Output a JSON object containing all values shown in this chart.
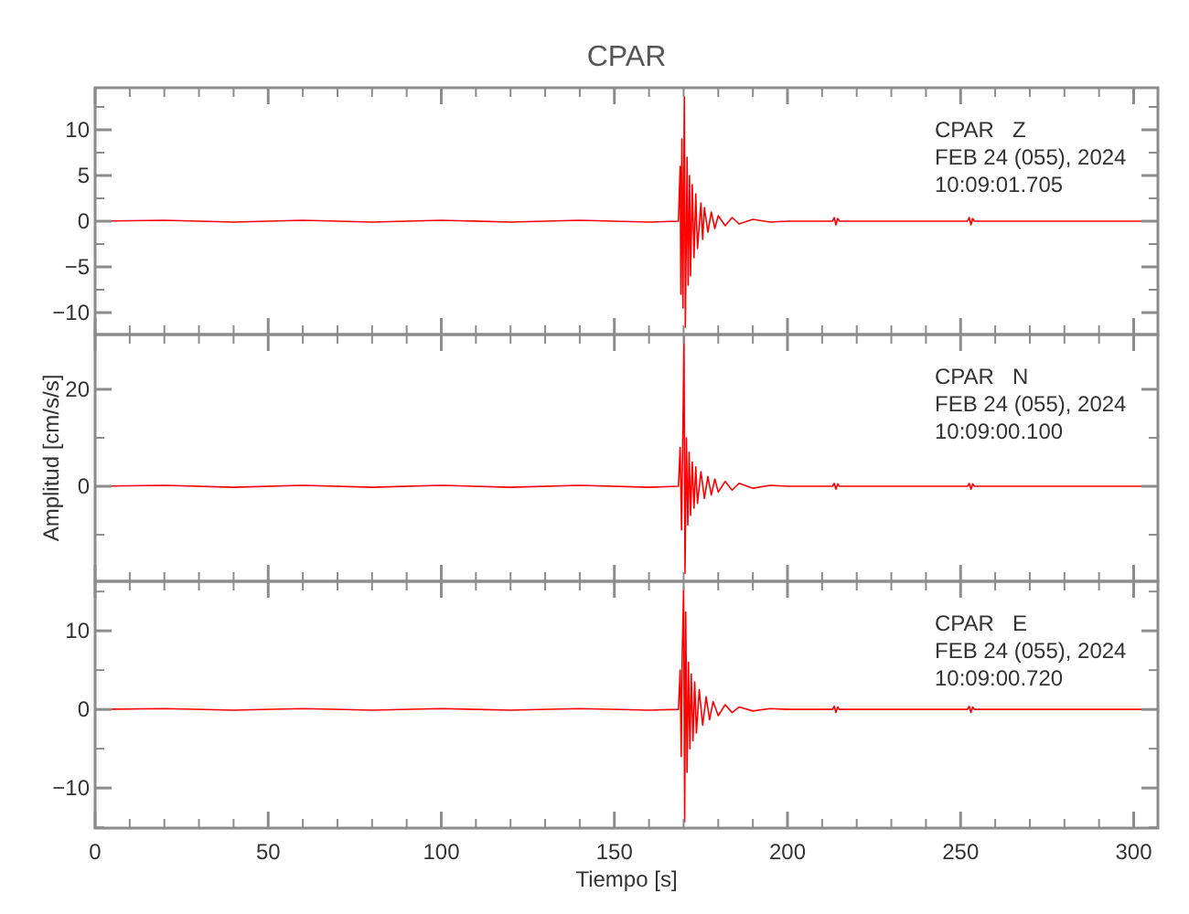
{
  "chart_data": [
    {
      "type": "line",
      "title": "CPAR",
      "xlim": [
        0,
        307
      ],
      "ylim": [
        -12.4,
        14.6
      ],
      "tick_labels": "y",
      "grid": false,
      "line_style": "solid",
      "marker": "none",
      "xticks": [
        0,
        {
          "value": 10,
          "label": null
        },
        {
          "value": 20,
          "label": null
        },
        {
          "value": 30,
          "label": null
        },
        {
          "value": 40,
          "label": null
        },
        50,
        {
          "value": 60,
          "label": null
        },
        {
          "value": 70,
          "label": null
        },
        {
          "value": 80,
          "label": null
        },
        {
          "value": 90,
          "label": null
        },
        100,
        {
          "value": 110,
          "label": null
        },
        {
          "value": 120,
          "label": null
        },
        {
          "value": 130,
          "label": null
        },
        {
          "value": 140,
          "label": null
        },
        150,
        {
          "value": 160,
          "label": null
        },
        {
          "value": 170,
          "label": null
        },
        {
          "value": 180,
          "label": null
        },
        {
          "value": 190,
          "label": null
        },
        200,
        {
          "value": 210,
          "label": null
        },
        {
          "value": 220,
          "label": null
        },
        {
          "value": 230,
          "label": null
        },
        {
          "value": 240,
          "label": null
        },
        250,
        {
          "value": 260,
          "label": null
        },
        {
          "value": 270,
          "label": null
        },
        {
          "value": 280,
          "label": null
        },
        {
          "value": 290,
          "label": null
        },
        300
      ],
      "yticks": [
        -10,
        {
          "value": -7.5,
          "label": null
        },
        -5,
        {
          "value": -2.5,
          "label": null
        },
        0,
        {
          "value": 2.5,
          "label": null
        },
        5,
        {
          "value": 7.5,
          "label": null
        },
        10,
        {
          "value": 12.5,
          "label": null
        }
      ],
      "annotations": [
        "CPAR   Z",
        "FEB 24 (055), 2024",
        "10:09:01.705"
      ],
      "series": [
        {
          "color": "#ff0000",
          "x": [
            0,
            20,
            40,
            60,
            80,
            100,
            120,
            140,
            160,
            168.5,
            169,
            169.2,
            169.5,
            169.8,
            170.2,
            170.5,
            171,
            171.3,
            171.7,
            172,
            172.5,
            173,
            173.5,
            174,
            175,
            175.5,
            176,
            177,
            178,
            179,
            180,
            182,
            184,
            186,
            190,
            195,
            200,
            213,
            213.5,
            214,
            214.5,
            215,
            252,
            252.5,
            253,
            253.5,
            254,
            280,
            307
          ],
          "values": [
            0,
            0.1,
            -0.1,
            0.1,
            -0.1,
            0.1,
            -0.1,
            0.1,
            -0.1,
            0,
            6,
            -8,
            9,
            -9.5,
            13.6,
            -11.6,
            7,
            -7,
            5,
            -6,
            4,
            -4,
            3,
            -3,
            2,
            -2,
            1.5,
            -1.2,
            1,
            -0.8,
            0.6,
            -0.5,
            0.4,
            -0.3,
            0.2,
            -0.1,
            0,
            0,
            0.4,
            -0.4,
            0.3,
            0,
            0,
            0.4,
            -0.4,
            0.3,
            0,
            0,
            0
          ]
        }
      ]
    },
    {
      "type": "line",
      "ylabel": "Amplitud [cm/s/s]",
      "xlim": [
        0,
        307
      ],
      "ylim": [
        -19.6,
        31.3
      ],
      "tick_labels": "y",
      "grid": false,
      "line_style": "solid",
      "marker": "none",
      "xticks": [
        0,
        {
          "value": 10,
          "label": null
        },
        {
          "value": 20,
          "label": null
        },
        {
          "value": 30,
          "label": null
        },
        {
          "value": 40,
          "label": null
        },
        50,
        {
          "value": 60,
          "label": null
        },
        {
          "value": 70,
          "label": null
        },
        {
          "value": 80,
          "label": null
        },
        {
          "value": 90,
          "label": null
        },
        100,
        {
          "value": 110,
          "label": null
        },
        {
          "value": 120,
          "label": null
        },
        {
          "value": 130,
          "label": null
        },
        {
          "value": 140,
          "label": null
        },
        150,
        {
          "value": 160,
          "label": null
        },
        {
          "value": 170,
          "label": null
        },
        {
          "value": 180,
          "label": null
        },
        {
          "value": 190,
          "label": null
        },
        200,
        {
          "value": 210,
          "label": null
        },
        {
          "value": 220,
          "label": null
        },
        {
          "value": 230,
          "label": null
        },
        {
          "value": 240,
          "label": null
        },
        250,
        {
          "value": 260,
          "label": null
        },
        {
          "value": 270,
          "label": null
        },
        {
          "value": 280,
          "label": null
        },
        {
          "value": 290,
          "label": null
        },
        300
      ],
      "yticks": [
        {
          "value": -10,
          "label": null
        },
        0,
        {
          "value": 10,
          "label": null
        },
        20
      ],
      "annotations": [
        "CPAR   N",
        "FEB 24 (055), 2024",
        "10:09:00.100"
      ],
      "series": [
        {
          "color": "#ff0000",
          "x": [
            0,
            20,
            40,
            60,
            80,
            100,
            120,
            140,
            160,
            168.5,
            169,
            169.4,
            169.8,
            170.1,
            170.4,
            170.8,
            171.2,
            171.6,
            172,
            172.5,
            173,
            173.5,
            174,
            175,
            176,
            177,
            178,
            179,
            180,
            182,
            184,
            186,
            190,
            195,
            200,
            213,
            213.5,
            214,
            214.5,
            215,
            252,
            252.5,
            253,
            253.5,
            254,
            280,
            307
          ],
          "values": [
            0,
            0.2,
            -0.2,
            0.2,
            -0.2,
            0.2,
            -0.2,
            0.2,
            -0.2,
            0,
            8,
            -9,
            12,
            31,
            -18,
            10,
            -8,
            7,
            -6,
            5,
            -4.5,
            4,
            -3.5,
            3,
            -2.5,
            2,
            -1.8,
            1.5,
            -1.2,
            1,
            -0.8,
            0.6,
            -0.4,
            0.2,
            0,
            0,
            0.6,
            -0.6,
            0.5,
            0,
            0,
            0.6,
            -0.6,
            0.5,
            0,
            0,
            0
          ]
        }
      ]
    },
    {
      "type": "line",
      "xlabel": "Tiempo [s]",
      "xlim": [
        0,
        307
      ],
      "ylim": [
        -15.1,
        16.3
      ],
      "grid": false,
      "line_style": "solid",
      "marker": "none",
      "xticks": [
        0,
        {
          "value": 10,
          "label": null
        },
        {
          "value": 20,
          "label": null
        },
        {
          "value": 30,
          "label": null
        },
        {
          "value": 40,
          "label": null
        },
        50,
        {
          "value": 60,
          "label": null
        },
        {
          "value": 70,
          "label": null
        },
        {
          "value": 80,
          "label": null
        },
        {
          "value": 90,
          "label": null
        },
        100,
        {
          "value": 110,
          "label": null
        },
        {
          "value": 120,
          "label": null
        },
        {
          "value": 130,
          "label": null
        },
        {
          "value": 140,
          "label": null
        },
        150,
        {
          "value": 160,
          "label": null
        },
        {
          "value": 170,
          "label": null
        },
        {
          "value": 180,
          "label": null
        },
        {
          "value": 190,
          "label": null
        },
        200,
        {
          "value": 210,
          "label": null
        },
        {
          "value": 220,
          "label": null
        },
        {
          "value": 230,
          "label": null
        },
        {
          "value": 240,
          "label": null
        },
        250,
        {
          "value": 260,
          "label": null
        },
        {
          "value": 270,
          "label": null
        },
        {
          "value": 280,
          "label": null
        },
        {
          "value": 290,
          "label": null
        },
        300
      ],
      "yticks": [
        {
          "value": -15,
          "label": null
        },
        -10,
        {
          "value": -5,
          "label": null
        },
        0,
        {
          "value": 5,
          "label": null
        },
        10,
        {
          "value": 15,
          "label": null
        }
      ],
      "annotations": [
        "CPAR   E",
        "FEB 24 (055), 2024",
        "10:09:00.720"
      ],
      "series": [
        {
          "color": "#ff0000",
          "x": [
            0,
            20,
            40,
            60,
            80,
            100,
            120,
            140,
            160,
            168.5,
            169,
            169.3,
            169.6,
            170,
            170.3,
            170.6,
            171,
            171.4,
            171.8,
            172.2,
            172.7,
            173.2,
            173.7,
            174.5,
            175.5,
            176.5,
            177.5,
            178.5,
            180,
            182,
            184,
            186,
            190,
            195,
            200,
            213,
            213.5,
            214,
            214.5,
            215,
            252,
            252.5,
            253,
            253.5,
            254,
            280,
            307
          ],
          "values": [
            0,
            0.1,
            -0.1,
            0.1,
            -0.1,
            0.1,
            -0.1,
            0.1,
            -0.1,
            0,
            5,
            -6,
            7,
            15.5,
            -14.3,
            12.4,
            -8,
            6,
            -5,
            4.5,
            -4,
            3.5,
            -3,
            2.5,
            -2,
            1.6,
            -1.3,
            1,
            -0.8,
            0.6,
            -0.4,
            0.3,
            -0.2,
            0.1,
            0,
            0,
            0.4,
            -0.4,
            0.3,
            0,
            0,
            0.4,
            -0.4,
            0.3,
            0,
            0,
            0
          ]
        }
      ]
    }
  ]
}
